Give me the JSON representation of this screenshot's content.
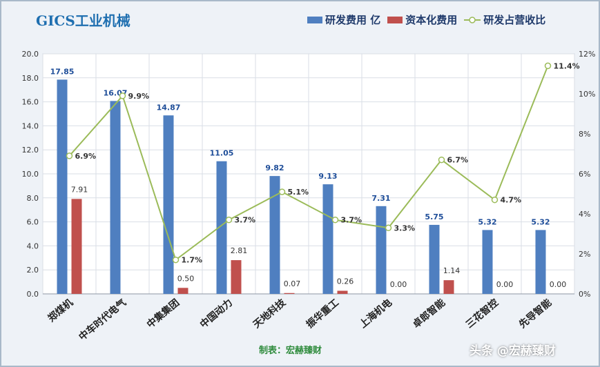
{
  "chart_data": {
    "type": "bar",
    "title": "GICS工业机械",
    "categories": [
      "郑煤机",
      "中车时代电气",
      "中集集团",
      "中国动力",
      "天地科技",
      "振华重工",
      "上海机电",
      "卓郎智能",
      "三花智控",
      "先导智能"
    ],
    "series": [
      {
        "name": "研发费用 亿",
        "type": "bar",
        "axis": "left",
        "color": "#4f7fc0",
        "values": [
          17.85,
          16.07,
          14.87,
          11.05,
          9.82,
          9.13,
          7.31,
          5.75,
          5.32,
          5.32
        ],
        "labels": [
          "17.85",
          "16.07",
          "14.87",
          "11.05",
          "9.82",
          "9.13",
          "7.31",
          "5.75",
          "5.32",
          "5.32"
        ]
      },
      {
        "name": "资本化费用",
        "type": "bar",
        "axis": "left",
        "color": "#c0504d",
        "values": [
          7.91,
          null,
          0.5,
          2.81,
          0.07,
          0.26,
          0.0,
          1.14,
          0.0,
          0.0
        ],
        "labels": [
          "7.91",
          "",
          "0.50",
          "2.81",
          "0.07",
          "0.26",
          "0.00",
          "1.14",
          "0.00",
          "0.00"
        ]
      },
      {
        "name": "研发占营收比",
        "type": "line",
        "axis": "right",
        "color": "#9bbb59",
        "values": [
          6.9,
          9.9,
          1.7,
          3.7,
          5.1,
          3.7,
          3.3,
          6.7,
          4.7,
          11.4
        ],
        "labels": [
          "6.9%",
          "9.9%",
          "1.7%",
          "3.7%",
          "5.1%",
          "3.7%",
          "3.3%",
          "6.7%",
          "4.7%",
          "11.4%"
        ]
      }
    ],
    "y_left": {
      "min": 0,
      "max": 20,
      "step": 2,
      "ticks": [
        "0.0",
        "2.0",
        "4.0",
        "6.0",
        "8.0",
        "10.0",
        "12.0",
        "14.0",
        "16.0",
        "18.0",
        "20.0"
      ]
    },
    "y_right": {
      "min": 0,
      "max": 12,
      "step": 2,
      "ticks": [
        "0%",
        "2%",
        "4%",
        "6%",
        "8%",
        "10%",
        "12%"
      ]
    },
    "grid": true,
    "legend_position": "top-right",
    "footer": "制表：宏赫臻财"
  },
  "watermark": "头条 @宏赫臻财",
  "colors": {
    "title": "#1f6fb0",
    "background": "#eef2f7",
    "label_blue": "#1f4e99",
    "label_red": "#8b1a1a",
    "footer": "#2e8b3c"
  }
}
